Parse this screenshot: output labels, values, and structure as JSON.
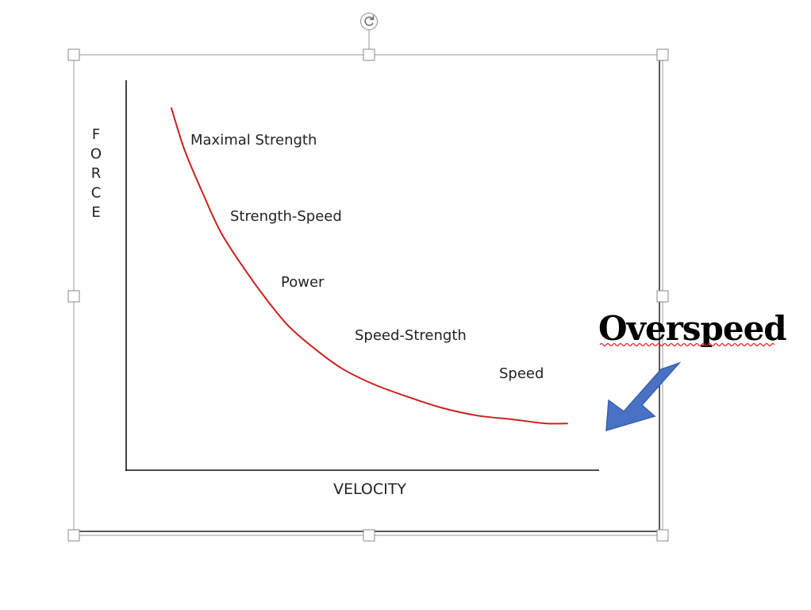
{
  "chart_data": {
    "type": "line",
    "title": "",
    "xlabel": "VELOCITY",
    "ylabel": "FORCE",
    "series": [
      {
        "name": "",
        "color": "#c8231e",
        "x": [
          0.1,
          0.13,
          0.17,
          0.21,
          0.26,
          0.31,
          0.36,
          0.42,
          0.48,
          0.55,
          0.62,
          0.7,
          0.78,
          0.86,
          0.93,
          0.98
        ],
        "y": [
          0.93,
          0.82,
          0.71,
          0.61,
          0.52,
          0.44,
          0.37,
          0.31,
          0.26,
          0.22,
          0.19,
          0.16,
          0.14,
          0.13,
          0.12,
          0.12
        ]
      }
    ],
    "annotations": [
      {
        "text": "Maximal Strength"
      },
      {
        "text": "Strength-Speed"
      },
      {
        "text": "Power"
      },
      {
        "text": "Speed-Strength"
      },
      {
        "text": "Speed"
      }
    ],
    "grid": false,
    "legend": "none"
  },
  "callout": {
    "text": "Overspeed",
    "arrow_color": "#4a72c4",
    "spellcheck_underline_color": "#e02020"
  },
  "selection": {
    "rotate_icon": "rotate-icon",
    "handle_icon": "resize-handle-icon"
  }
}
